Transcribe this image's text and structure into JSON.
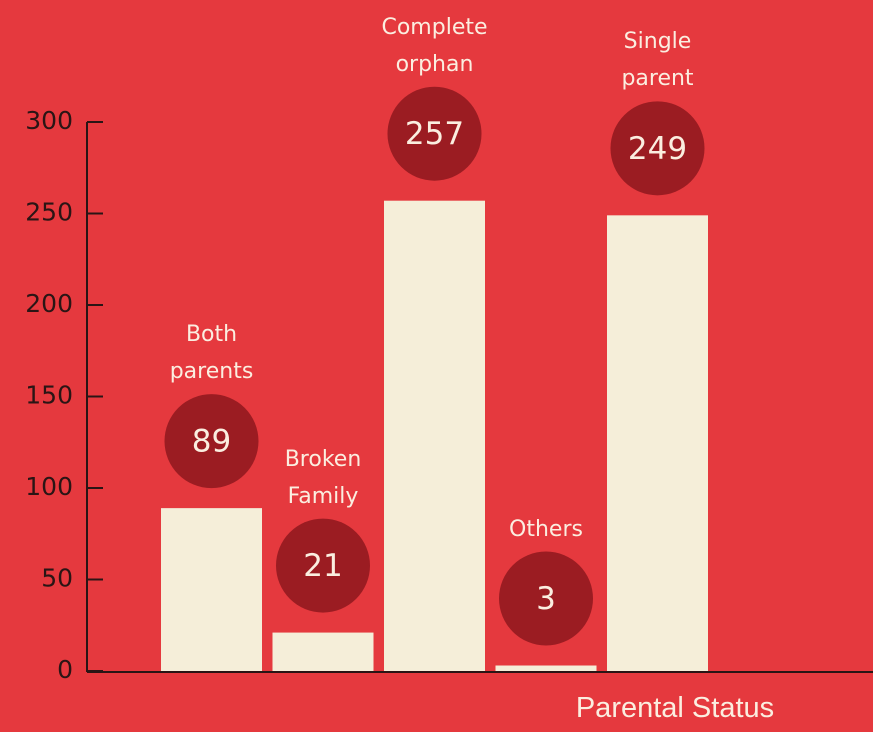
{
  "chart_data": {
    "type": "bar",
    "categories": [
      "Both parents",
      "Broken Family",
      "Complete orphan",
      "Others",
      "Single parent"
    ],
    "values": [
      89,
      21,
      257,
      3,
      249
    ],
    "color": "#f5eed9",
    "ylim": [
      0,
      300
    ],
    "yticks": [
      0,
      50,
      100,
      150,
      200,
      250,
      300
    ],
    "xlabel": "Parental Status"
  }
}
